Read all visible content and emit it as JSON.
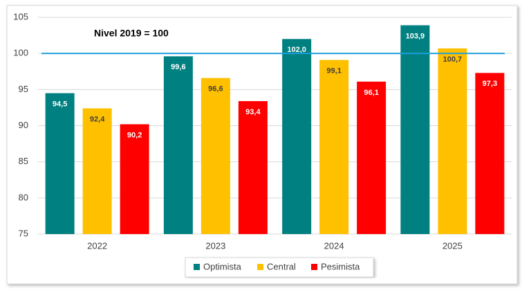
{
  "chart_data": {
    "type": "bar",
    "annotation": "Nivel 2019 = 100",
    "reference_value": 100,
    "reference_color": "#1e9fdc",
    "categories": [
      "2022",
      "2023",
      "2024",
      "2025"
    ],
    "series": [
      {
        "name": "Optimista",
        "color": "#008080",
        "label_color": "#ffffff",
        "values": [
          94.5,
          99.6,
          102.0,
          103.9
        ],
        "value_labels": [
          "94,5",
          "99,6",
          "102,0",
          "103,9"
        ]
      },
      {
        "name": "Central",
        "color": "#ffc000",
        "label_color": "#404040",
        "values": [
          92.4,
          96.6,
          99.1,
          100.7
        ],
        "value_labels": [
          "92,4",
          "96,6",
          "99,1",
          "100,7"
        ]
      },
      {
        "name": "Pesimista",
        "color": "#ff0000",
        "label_color": "#ffffff",
        "values": [
          90.2,
          93.4,
          96.1,
          97.3
        ],
        "value_labels": [
          "90,2",
          "93,4",
          "96,1",
          "97,3"
        ]
      }
    ],
    "ylim": [
      75,
      105
    ],
    "yticks": [
      75,
      80,
      85,
      90,
      95,
      100,
      105
    ],
    "grid": true,
    "legend": "bottom"
  }
}
